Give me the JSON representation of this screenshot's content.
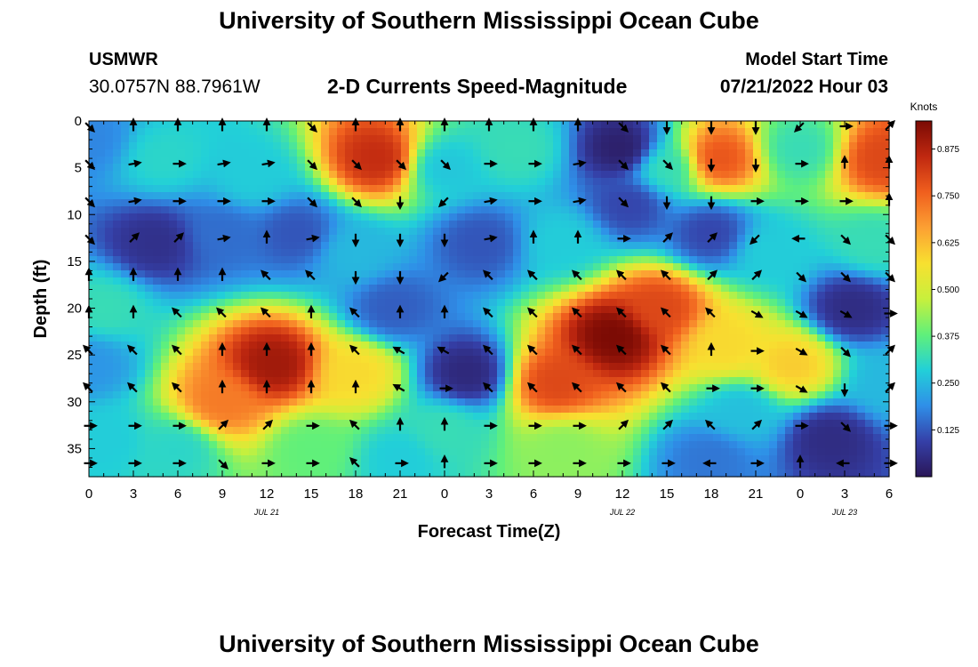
{
  "page": {
    "title": "University of Southern Mississippi Ocean Cube",
    "repeat_title": "University of Southern Mississippi Ocean Cube",
    "station": "USMWR",
    "coordinates": "30.0757N  88.7961W",
    "subtitle": "2-D Currents Speed-Magnitude",
    "model_start_label": "Model Start Time",
    "model_start_value": "07/21/2022 Hour 03"
  },
  "chart_data": {
    "type": "heatmap",
    "title": "2-D Currents Speed-Magnitude",
    "xlabel": "Forecast Time(Z)",
    "ylabel": "Depth (ft)",
    "x_ticks": [
      "0",
      "3",
      "6",
      "9",
      "12",
      "15",
      "18",
      "21",
      "0",
      "3",
      "6",
      "9",
      "12",
      "15",
      "18",
      "21",
      "0",
      "3",
      "6"
    ],
    "x_range_hours": [
      0,
      54
    ],
    "date_labels": [
      {
        "text": "JUL 21",
        "hour": 12
      },
      {
        "text": "JUL 22",
        "hour": 36
      },
      {
        "text": "JUL 23",
        "hour": 51
      }
    ],
    "y_ticks": [
      "0",
      "5",
      "10",
      "15",
      "20",
      "25",
      "30",
      "35"
    ],
    "y_range_ft": [
      0,
      38
    ],
    "colorbar": {
      "label": "Knots",
      "ticks": [
        "0.125",
        "0.250",
        "0.375",
        "0.500",
        "0.625",
        "0.750",
        "0.875"
      ],
      "range": [
        0.0,
        0.95
      ],
      "colors": [
        "#2a1658",
        "#3540a8",
        "#2f8fe8",
        "#22d0d8",
        "#60f07a",
        "#c8f03c",
        "#f8e030",
        "#fca033",
        "#f05f1e",
        "#c02810",
        "#7a0a04"
      ]
    },
    "speed_centers": [
      {
        "hour": 0,
        "depth": 2,
        "speed": 0.18
      },
      {
        "hour": 5,
        "depth": 4,
        "speed": 0.3
      },
      {
        "hour": 11,
        "depth": 6,
        "speed": 0.28
      },
      {
        "hour": 4.5,
        "depth": 13,
        "speed": 0.06
      },
      {
        "hour": 9,
        "depth": 12,
        "speed": 0.15
      },
      {
        "hour": 14,
        "depth": 12,
        "speed": 0.12
      },
      {
        "hour": 19.5,
        "depth": 4,
        "speed": 0.85
      },
      {
        "hour": 18,
        "depth": 14,
        "speed": 0.25
      },
      {
        "hour": 12.5,
        "depth": 26,
        "speed": 0.9
      },
      {
        "hour": 9,
        "depth": 30,
        "speed": 0.72
      },
      {
        "hour": 18,
        "depth": 27,
        "speed": 0.58
      },
      {
        "hour": 1,
        "depth": 20,
        "speed": 0.32
      },
      {
        "hour": 0,
        "depth": 26,
        "speed": 0.2
      },
      {
        "hour": 1,
        "depth": 34,
        "speed": 0.28
      },
      {
        "hour": 6,
        "depth": 35,
        "speed": 0.3
      },
      {
        "hour": 15,
        "depth": 35,
        "speed": 0.38
      },
      {
        "hour": 21,
        "depth": 36,
        "speed": 0.28
      },
      {
        "hour": 20.5,
        "depth": 20,
        "speed": 0.13
      },
      {
        "hour": 25.5,
        "depth": 27,
        "speed": 0.04
      },
      {
        "hour": 26.5,
        "depth": 13,
        "speed": 0.12
      },
      {
        "hour": 24,
        "depth": 5,
        "speed": 0.27
      },
      {
        "hour": 29,
        "depth": 3,
        "speed": 0.32
      },
      {
        "hour": 24,
        "depth": 33,
        "speed": 0.32
      },
      {
        "hour": 36,
        "depth": 3,
        "speed": 0.02
      },
      {
        "hour": 36.5,
        "depth": 9,
        "speed": 0.1
      },
      {
        "hour": 32,
        "depth": 13,
        "speed": 0.28
      },
      {
        "hour": 35.5,
        "depth": 23,
        "speed": 0.95
      },
      {
        "hour": 31.5,
        "depth": 28,
        "speed": 0.8
      },
      {
        "hour": 38.5,
        "depth": 20,
        "speed": 0.8
      },
      {
        "hour": 32,
        "depth": 35,
        "speed": 0.42
      },
      {
        "hour": 42.5,
        "depth": 4,
        "speed": 0.78
      },
      {
        "hour": 39,
        "depth": 5,
        "speed": 0.32
      },
      {
        "hour": 42,
        "depth": 12,
        "speed": 0.1
      },
      {
        "hour": 46,
        "depth": 14,
        "speed": 0.28
      },
      {
        "hour": 43,
        "depth": 24,
        "speed": 0.58
      },
      {
        "hour": 47.5,
        "depth": 26,
        "speed": 0.6
      },
      {
        "hour": 44,
        "depth": 31,
        "speed": 0.26
      },
      {
        "hour": 42,
        "depth": 36,
        "speed": 0.16
      },
      {
        "hour": 50,
        "depth": 34,
        "speed": 0.05
      },
      {
        "hour": 48,
        "depth": 3,
        "speed": 0.32
      },
      {
        "hour": 53.5,
        "depth": 4,
        "speed": 0.8
      },
      {
        "hour": 51.5,
        "depth": 20,
        "speed": 0.05
      },
      {
        "hour": 53,
        "depth": 13,
        "speed": 0.32
      },
      {
        "hour": 54,
        "depth": 28,
        "speed": 0.25
      }
    ],
    "vector_hours": [
      0,
      3,
      6,
      9,
      12,
      15,
      18,
      21,
      24,
      27,
      30,
      33,
      36,
      39,
      42,
      45,
      48,
      51,
      54
    ],
    "vector_depths": [
      0,
      4,
      8,
      12,
      16,
      20,
      24,
      28,
      32,
      36
    ],
    "vector_angles_deg": [
      [
        135,
        0,
        0,
        0,
        0,
        135,
        0,
        0,
        0,
        0,
        0,
        0,
        135,
        180,
        180,
        180,
        225,
        90,
        45
      ],
      [
        135,
        80,
        90,
        80,
        80,
        135,
        135,
        135,
        135,
        90,
        90,
        80,
        135,
        135,
        180,
        180,
        90,
        0,
        0
      ],
      [
        135,
        80,
        90,
        90,
        90,
        135,
        135,
        180,
        225,
        80,
        90,
        80,
        135,
        180,
        180,
        90,
        90,
        90,
        0
      ],
      [
        135,
        45,
        45,
        80,
        0,
        80,
        180,
        180,
        180,
        80,
        0,
        0,
        90,
        45,
        45,
        225,
        270,
        135,
        135
      ],
      [
        0,
        0,
        0,
        0,
        315,
        315,
        180,
        180,
        225,
        315,
        315,
        315,
        315,
        315,
        45,
        45,
        135,
        135,
        135
      ],
      [
        0,
        0,
        315,
        315,
        315,
        0,
        315,
        0,
        0,
        315,
        315,
        315,
        315,
        315,
        315,
        120,
        120,
        120,
        90
      ],
      [
        315,
        315,
        315,
        0,
        0,
        0,
        315,
        300,
        300,
        315,
        315,
        315,
        315,
        315,
        0,
        90,
        120,
        135,
        45
      ],
      [
        315,
        315,
        315,
        0,
        0,
        0,
        0,
        300,
        90,
        315,
        315,
        315,
        315,
        315,
        90,
        90,
        120,
        180,
        45
      ],
      [
        90,
        90,
        90,
        45,
        45,
        90,
        315,
        0,
        0,
        90,
        90,
        90,
        45,
        45,
        315,
        45,
        90,
        135,
        90
      ],
      [
        90,
        90,
        90,
        135,
        90,
        90,
        315,
        90,
        0,
        90,
        90,
        90,
        90,
        90,
        270,
        90,
        0,
        270,
        90
      ]
    ]
  }
}
